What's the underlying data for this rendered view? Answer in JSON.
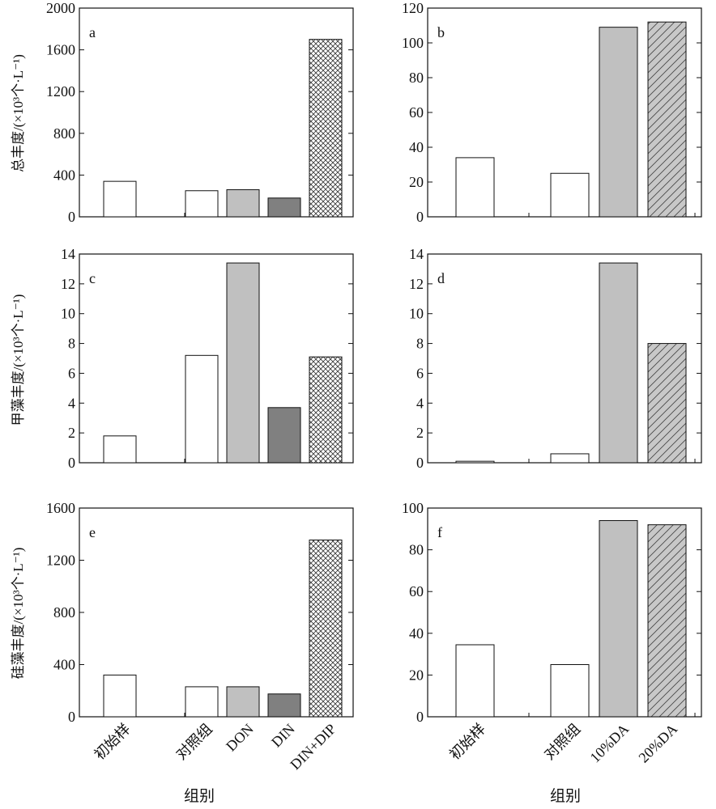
{
  "xlabel": "组别",
  "ylabels": {
    "row1": "总丰度/(×10³个·L⁻¹)",
    "row2": "甲藻丰度/(×10³个·L⁻¹)",
    "row3": "硅藻丰度/(×10³个·L⁻¹)"
  },
  "categories_left": [
    "初始样",
    "对照组",
    "DON",
    "DIN",
    "DIN+DIP"
  ],
  "categories_right": [
    "初始样",
    "对照组",
    "10%DA",
    "20%DA"
  ],
  "fills": {
    "初始样": "white",
    "对照组": "white",
    "DON": "#c0c0c0",
    "DIN": "#808080",
    "DIN+DIP": "crosshatch",
    "10%DA": "#c0c0c0",
    "20%DA": "diagonal-hatch"
  },
  "chart_data": [
    {
      "panel": "a",
      "type": "bar",
      "categories": [
        "初始样",
        "对照组",
        "DON",
        "DIN",
        "DIN+DIP"
      ],
      "values": [
        340,
        250,
        260,
        180,
        1700
      ],
      "ylim": [
        0,
        2000
      ],
      "yticks": [
        0,
        400,
        800,
        1200,
        1600,
        2000
      ]
    },
    {
      "panel": "b",
      "type": "bar",
      "categories": [
        "初始样",
        "对照组",
        "10%DA",
        "20%DA"
      ],
      "values": [
        34,
        25,
        109,
        112
      ],
      "ylim": [
        0,
        120
      ],
      "yticks": [
        0,
        20,
        40,
        60,
        80,
        100,
        120
      ]
    },
    {
      "panel": "c",
      "type": "bar",
      "categories": [
        "初始样",
        "对照组",
        "DON",
        "DIN",
        "DIN+DIP"
      ],
      "values": [
        1.8,
        7.2,
        13.4,
        3.7,
        7.1
      ],
      "ylim": [
        0,
        14
      ],
      "yticks": [
        0,
        2,
        4,
        6,
        8,
        10,
        12,
        14
      ]
    },
    {
      "panel": "d",
      "type": "bar",
      "categories": [
        "初始样",
        "对照组",
        "10%DA",
        "20%DA"
      ],
      "values": [
        0.1,
        0.6,
        13.4,
        8.0
      ],
      "ylim": [
        0,
        14
      ],
      "yticks": [
        0,
        2,
        4,
        6,
        8,
        10,
        12,
        14
      ]
    },
    {
      "panel": "e",
      "type": "bar",
      "categories": [
        "初始样",
        "对照组",
        "DON",
        "DIN",
        "DIN+DIP"
      ],
      "values": [
        320,
        230,
        230,
        175,
        1355
      ],
      "ylim": [
        0,
        1600
      ],
      "yticks": [
        0,
        400,
        800,
        1200,
        1600
      ]
    },
    {
      "panel": "f",
      "type": "bar",
      "categories": [
        "初始样",
        "对照组",
        "10%DA",
        "20%DA"
      ],
      "values": [
        34.5,
        25,
        94,
        92
      ],
      "ylim": [
        0,
        100
      ],
      "yticks": [
        0,
        20,
        40,
        60,
        80,
        100
      ]
    }
  ]
}
